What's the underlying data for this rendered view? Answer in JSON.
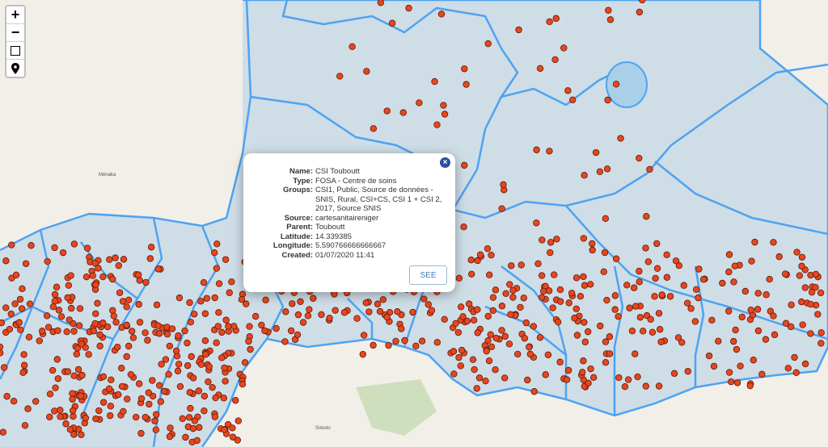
{
  "map": {
    "region_fill": "#c9d9e6",
    "boundary_color": "#4da3f0",
    "marker_color": "#e8461e",
    "marker_outline": "#5a1a0a",
    "place_labels": [
      "Ménaka",
      "Sokoto"
    ]
  },
  "controls": {
    "zoom_in": "+",
    "zoom_out": "−",
    "draw_rectangle_icon": "square-icon",
    "locate_icon": "map-pin-icon"
  },
  "popup": {
    "close": "×",
    "fields": [
      {
        "label": "Name:",
        "value": "CSI Touboutt"
      },
      {
        "label": "Type:",
        "value": "FOSA - Centre de soins"
      },
      {
        "label": "Groups:",
        "value": "CSI1, Public, Source de données - SNIS, Rural, CSI+CS, CSI 1 + CSI 2, 2017, Source SNIS"
      },
      {
        "label": "Source:",
        "value": "cartesanitaireniger"
      },
      {
        "label": "Parent:",
        "value": "Touboutt"
      },
      {
        "label": "Latitude:",
        "value": "14.339385"
      },
      {
        "label": "Longitude:",
        "value": "5.590766666666667"
      },
      {
        "label": "Created:",
        "value": "01/07/2020 11:41"
      }
    ],
    "see_button": "SEE"
  }
}
